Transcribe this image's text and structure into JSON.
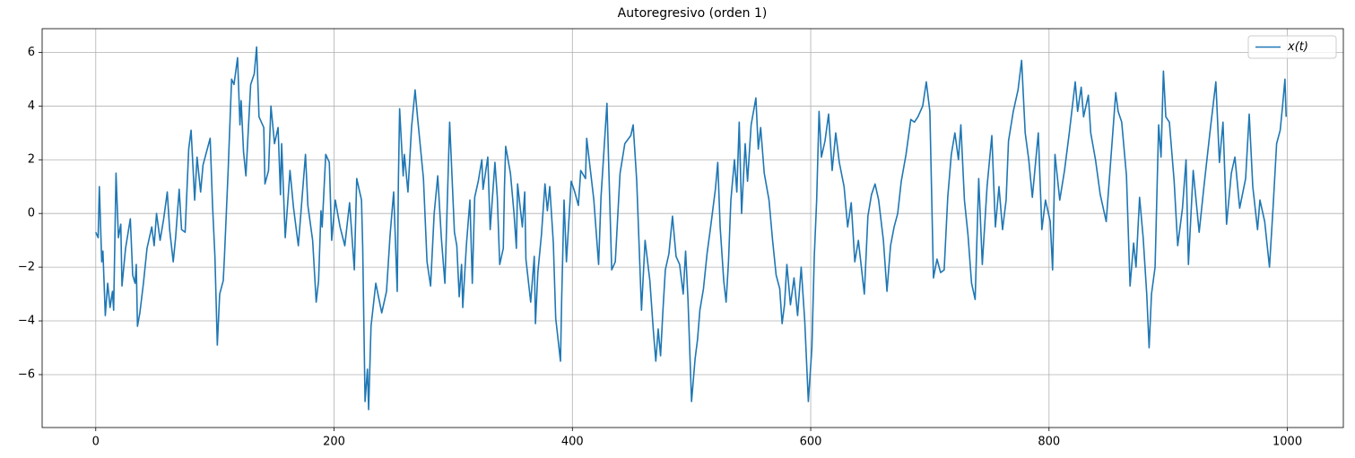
{
  "chart_data": {
    "type": "line",
    "title": "Autoregresivo (orden 1)",
    "x": [
      0,
      2,
      3,
      5,
      6,
      8,
      10,
      12,
      14,
      15,
      17,
      19,
      21,
      22,
      25,
      29,
      31,
      33,
      34,
      35,
      37,
      40,
      43,
      47,
      49,
      51,
      54,
      57,
      60,
      62,
      65,
      67,
      70,
      72,
      75,
      78,
      80,
      83,
      85,
      88,
      90,
      96,
      98,
      100,
      102,
      104,
      107,
      108,
      111,
      114,
      116,
      119,
      121,
      122,
      124,
      126,
      130,
      133,
      135,
      137,
      141,
      142,
      145,
      147,
      150,
      153,
      155,
      156,
      159,
      163,
      166,
      170,
      176,
      178,
      182,
      185,
      187,
      189,
      190,
      193,
      196,
      198,
      201,
      205,
      209,
      213,
      217,
      219,
      223,
      224,
      226,
      228,
      229,
      231,
      235,
      240,
      244,
      247,
      250,
      253,
      254,
      255,
      258,
      259,
      262,
      265,
      268,
      270,
      275,
      278,
      281,
      284,
      287,
      290,
      293,
      297,
      301,
      303,
      305,
      307,
      308,
      311,
      314,
      316,
      318,
      321,
      324,
      325,
      329,
      331,
      335,
      337,
      339,
      342,
      343,
      344,
      348,
      351,
      353,
      354,
      358,
      360,
      361,
      365,
      368,
      369,
      371,
      374,
      377,
      379,
      381,
      384,
      386,
      387,
      390,
      391,
      393,
      395,
      399,
      402,
      405,
      407,
      411,
      412,
      418,
      422,
      424,
      429,
      433,
      436,
      440,
      444,
      449,
      451,
      454,
      458,
      461,
      465,
      468,
      470,
      472,
      474,
      476,
      478,
      481,
      484,
      487,
      490,
      493,
      495,
      497,
      500,
      503,
      505,
      507,
      510,
      513,
      516,
      520,
      522,
      524,
      527,
      529,
      531,
      533,
      536,
      538,
      540,
      542,
      545,
      547,
      550,
      554,
      556,
      558,
      561,
      565,
      568,
      571,
      574,
      576,
      578,
      580,
      583,
      586,
      589,
      592,
      595,
      598,
      601,
      603,
      605,
      607,
      609,
      612,
      615,
      618,
      621,
      624,
      628,
      631,
      634,
      637,
      640,
      645,
      648,
      651,
      654,
      657,
      661,
      664,
      667,
      670,
      673,
      676,
      680,
      684,
      687,
      690,
      694,
      697,
      700,
      703,
      706,
      709,
      712,
      715,
      718,
      721,
      724,
      726,
      729,
      732,
      735,
      738,
      741,
      744,
      748,
      752,
      755,
      758,
      761,
      764,
      766,
      770,
      774,
      777,
      780,
      783,
      786,
      791,
      794,
      797,
      801,
      803,
      805,
      809,
      813,
      817,
      822,
      824,
      827,
      829,
      833,
      835,
      839,
      843,
      848,
      851,
      856,
      858,
      861,
      865,
      868,
      871,
      873,
      876,
      879,
      882,
      884,
      886,
      889,
      892,
      894,
      896,
      898,
      901,
      905,
      908,
      912,
      915,
      917,
      921,
      926,
      930,
      935,
      940,
      943,
      946,
      949,
      953,
      956,
      960,
      965,
      968,
      971,
      975,
      977,
      981,
      985,
      988,
      991,
      994,
      996,
      998,
      999
    ],
    "series": [
      {
        "name": "x(t)",
        "color": "#1f77b4",
        "values": [
          -0.7,
          -0.9,
          1.0,
          -1.8,
          -1.4,
          -3.8,
          -2.6,
          -3.5,
          -2.9,
          -3.6,
          1.5,
          -0.9,
          -0.4,
          -2.7,
          -1.3,
          -0.2,
          -2.3,
          -2.6,
          -1.9,
          -4.2,
          -3.7,
          -2.6,
          -1.3,
          -0.5,
          -1.2,
          0.0,
          -1.0,
          -0.2,
          0.8,
          -0.6,
          -1.8,
          -0.9,
          0.9,
          -0.6,
          -0.7,
          2.4,
          3.1,
          0.5,
          2.1,
          0.8,
          1.8,
          2.8,
          0.3,
          -1.6,
          -4.9,
          -3.0,
          -2.5,
          -1.6,
          1.5,
          5.0,
          4.8,
          5.8,
          3.3,
          4.2,
          2.3,
          1.4,
          4.8,
          5.2,
          6.2,
          3.6,
          3.2,
          1.1,
          1.6,
          4.0,
          2.6,
          3.2,
          0.7,
          2.6,
          -0.9,
          1.6,
          0.2,
          -1.2,
          2.2,
          0.3,
          -1.0,
          -3.3,
          -2.5,
          0.1,
          -0.5,
          2.2,
          1.9,
          -1.0,
          0.5,
          -0.5,
          -1.2,
          0.4,
          -2.1,
          1.3,
          0.5,
          -1.2,
          -7.0,
          -5.8,
          -7.3,
          -4.2,
          -2.6,
          -3.7,
          -2.9,
          -0.8,
          0.8,
          -2.9,
          1.3,
          3.9,
          1.4,
          2.2,
          0.8,
          3.2,
          4.6,
          3.6,
          1.3,
          -1.8,
          -2.7,
          0.0,
          1.4,
          -0.9,
          -2.6,
          3.4,
          -0.7,
          -1.2,
          -3.1,
          -1.9,
          -3.5,
          -1.2,
          0.5,
          -2.6,
          0.6,
          1.2,
          2.0,
          0.9,
          2.1,
          -0.6,
          1.9,
          0.6,
          -1.9,
          -1.3,
          1.0,
          2.5,
          1.5,
          0.0,
          -1.3,
          1.1,
          -0.5,
          0.8,
          -1.7,
          -3.3,
          -1.6,
          -4.1,
          -2.2,
          -0.8,
          1.1,
          0.1,
          1.0,
          -1.1,
          -3.9,
          -4.3,
          -5.5,
          -3.2,
          0.5,
          -1.8,
          1.2,
          0.8,
          0.3,
          1.6,
          1.3,
          2.8,
          0.5,
          -1.9,
          0.6,
          4.1,
          -2.1,
          -1.8,
          1.5,
          2.6,
          2.9,
          3.3,
          1.2,
          -3.6,
          -1.0,
          -2.5,
          -4.4,
          -5.5,
          -4.3,
          -5.3,
          -3.6,
          -2.1,
          -1.5,
          -0.1,
          -1.6,
          -1.9,
          -3.0,
          -1.4,
          -3.2,
          -7.0,
          -5.4,
          -4.7,
          -3.6,
          -2.8,
          -1.5,
          -0.5,
          0.9,
          1.9,
          -0.5,
          -2.5,
          -3.3,
          -1.8,
          0.5,
          2.0,
          0.8,
          3.4,
          0.0,
          2.6,
          1.2,
          3.3,
          4.3,
          2.4,
          3.2,
          1.5,
          0.5,
          -1.0,
          -2.3,
          -2.8,
          -4.1,
          -3.4,
          -1.9,
          -3.4,
          -2.4,
          -3.8,
          -2.0,
          -4.0,
          -7.0,
          -5.0,
          -1.6,
          0.5,
          3.8,
          2.1,
          2.7,
          3.7,
          1.6,
          3.0,
          1.9,
          1.0,
          -0.5,
          0.4,
          -1.8,
          -1.0,
          -3.0,
          -0.1,
          0.7,
          1.1,
          0.5,
          -1.0,
          -2.9,
          -1.2,
          -0.5,
          0.0,
          1.2,
          2.2,
          3.5,
          3.4,
          3.6,
          4.0,
          4.9,
          3.8,
          -2.4,
          -1.7,
          -2.2,
          -2.1,
          0.6,
          2.2,
          3.0,
          2.0,
          3.3,
          0.5,
          -0.8,
          -2.6,
          -3.2,
          1.3,
          -1.9,
          1.0,
          2.9,
          -0.5,
          1.0,
          -0.6,
          0.5,
          2.7,
          3.8,
          4.6,
          5.7,
          3.0,
          2.0,
          0.6,
          3.0,
          -0.6,
          0.5,
          -0.3,
          -2.1,
          2.2,
          0.5,
          1.6,
          3.0,
          4.9,
          3.8,
          4.7,
          3.6,
          4.4,
          3.0,
          2.0,
          0.7,
          -0.3,
          1.5,
          4.5,
          3.8,
          3.4,
          1.4,
          -2.7,
          -1.1,
          -2.0,
          0.6,
          -0.9,
          -3.0,
          -5.0,
          -3.0,
          -2.0,
          3.3,
          2.1,
          5.3,
          3.6,
          3.4,
          1.2,
          -1.2,
          0.2,
          2.0,
          -1.9,
          1.6,
          -0.7,
          1.0,
          3.0,
          4.9,
          1.9,
          3.4,
          -0.4,
          1.5,
          2.1,
          0.2,
          1.3,
          3.7,
          1.0,
          -0.6,
          0.5,
          -0.3,
          -2.0,
          0.2,
          2.6,
          3.1,
          4.0,
          5.0,
          3.6
        ]
      }
    ],
    "xlim": [
      -45,
      1047
    ],
    "ylim": [
      -7.97,
      6.88
    ],
    "xticks": [
      0,
      200,
      400,
      600,
      800,
      1000
    ],
    "yticks": [
      {
        "value": -6,
        "label": "−6"
      },
      {
        "value": -4,
        "label": "−4"
      },
      {
        "value": -2,
        "label": "−2"
      },
      0,
      2,
      4,
      6
    ],
    "grid": true,
    "legend": "upper right"
  }
}
